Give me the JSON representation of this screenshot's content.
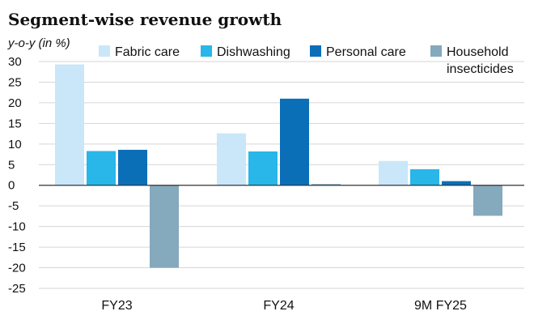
{
  "chart_data": {
    "type": "bar",
    "title": "Segment-wise revenue growth",
    "ylabel": "y-o-y (in %)",
    "categories": [
      "FY23",
      "FY24",
      "9M FY25"
    ],
    "series": [
      {
        "name": "Fabric care",
        "color": "#c9e7f8",
        "values": [
          29.3,
          12.6,
          5.9
        ]
      },
      {
        "name": "Dishwashing",
        "color": "#29b6e8",
        "values": [
          8.3,
          8.2,
          3.9
        ]
      },
      {
        "name": "Personal care",
        "color": "#0b6fb8",
        "values": [
          8.6,
          21.0,
          1.0
        ]
      },
      {
        "name": "Household insecticides",
        "name_lines": [
          "Household",
          "insecticides"
        ],
        "color": "#85a9bd",
        "values": [
          -20.0,
          0.3,
          -7.4
        ]
      }
    ],
    "ylim": [
      -25,
      30
    ],
    "yticks": [
      30,
      25,
      20,
      15,
      10,
      5,
      0,
      -5,
      -10,
      -15,
      -20,
      -25
    ],
    "grid": true,
    "legend_position": "top"
  }
}
